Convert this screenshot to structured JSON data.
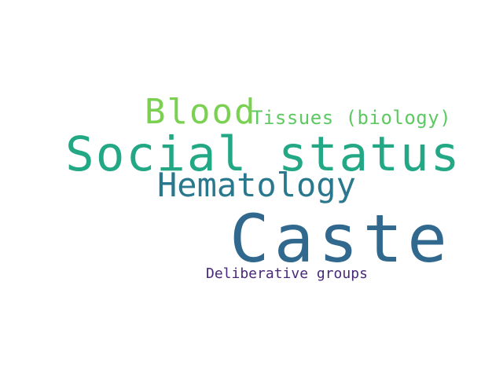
{
  "wordcloud": {
    "words": [
      {
        "text": "Blood",
        "color": "#7ad151"
      },
      {
        "text": "Tissues (biology)",
        "color": "#5ec962"
      },
      {
        "text": "Social status",
        "color": "#22a884"
      },
      {
        "text": "Hematology",
        "color": "#2a788e"
      },
      {
        "text": "Caste",
        "color": "#31688e"
      },
      {
        "text": "Deliberative groups",
        "color": "#482878"
      }
    ]
  }
}
